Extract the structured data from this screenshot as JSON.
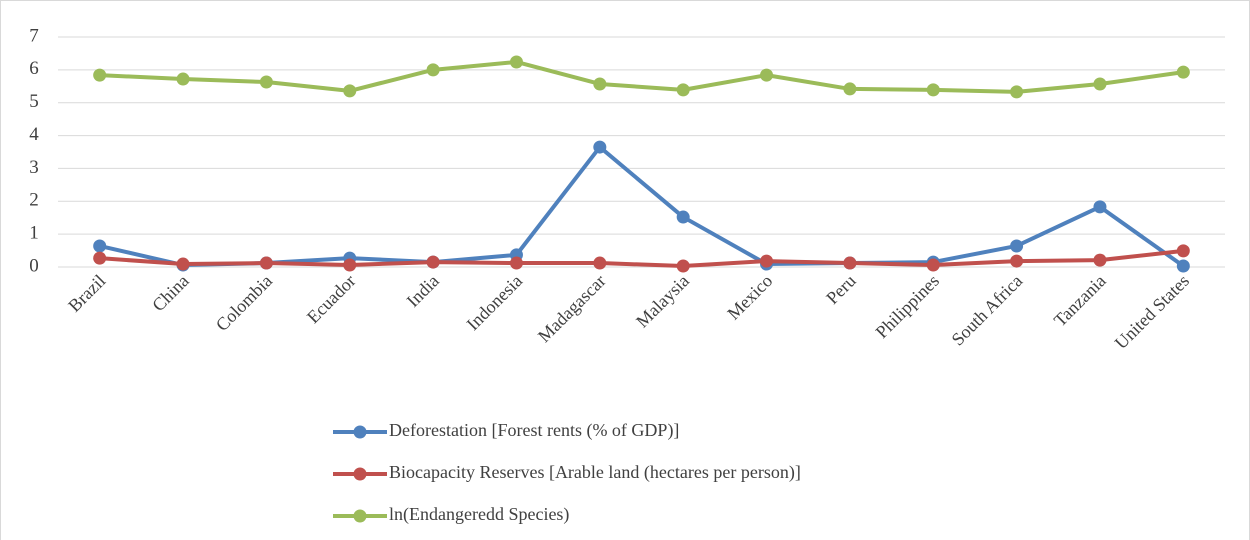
{
  "chart_data": {
    "type": "line",
    "categories": [
      "Brazil",
      "China",
      "Colombia",
      "Ecuador",
      "India",
      "Indonesia",
      "Madagascar",
      "Malaysia",
      "Mexico",
      "Peru",
      "Philippines",
      "South Africa",
      "Tanzania",
      "United States"
    ],
    "series": [
      {
        "name": "Deforestation [Forest rents (% of GDP)]",
        "color": "#4f81bd",
        "values": [
          0.64,
          0.06,
          0.12,
          0.27,
          0.15,
          0.37,
          3.65,
          1.52,
          0.09,
          0.12,
          0.15,
          0.64,
          1.83,
          0.03
        ]
      },
      {
        "name": "Biocapacity Reserves [Arable land (hectares per person)]",
        "color": "#c0504d",
        "values": [
          0.27,
          0.09,
          0.12,
          0.06,
          0.15,
          0.12,
          0.12,
          0.03,
          0.18,
          0.12,
          0.06,
          0.18,
          0.21,
          0.49
        ]
      },
      {
        "name": "ln(Endangeredd Species)",
        "color": "#9bbb59",
        "values": [
          5.84,
          5.72,
          5.63,
          5.36,
          6.0,
          6.24,
          5.57,
          5.39,
          5.84,
          5.42,
          5.39,
          5.33,
          5.57,
          5.93
        ]
      }
    ],
    "ylim": [
      0,
      7
    ],
    "yticks": [
      0,
      1,
      2,
      3,
      4,
      5,
      6,
      7
    ],
    "grid": true,
    "legend": "bottom"
  }
}
